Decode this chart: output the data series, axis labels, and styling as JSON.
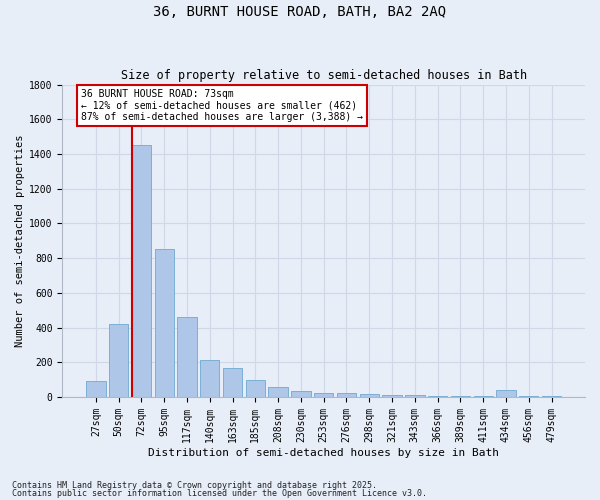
{
  "title1": "36, BURNT HOUSE ROAD, BATH, BA2 2AQ",
  "title2": "Size of property relative to semi-detached houses in Bath",
  "xlabel": "Distribution of semi-detached houses by size in Bath",
  "ylabel": "Number of semi-detached properties",
  "categories": [
    "27sqm",
    "50sqm",
    "72sqm",
    "95sqm",
    "117sqm",
    "140sqm",
    "163sqm",
    "185sqm",
    "208sqm",
    "230sqm",
    "253sqm",
    "276sqm",
    "298sqm",
    "321sqm",
    "343sqm",
    "366sqm",
    "389sqm",
    "411sqm",
    "434sqm",
    "456sqm",
    "479sqm"
  ],
  "values": [
    90,
    420,
    1450,
    850,
    460,
    215,
    165,
    95,
    60,
    35,
    25,
    25,
    15,
    12,
    10,
    8,
    6,
    6,
    40,
    5,
    3
  ],
  "bar_color": "#aec6e8",
  "bar_edge_color": "#7aafd4",
  "grid_color": "#d0d8e8",
  "bg_color": "#e8eef8",
  "vline_color": "#cc0000",
  "vline_x": 2,
  "annotation_text": "36 BURNT HOUSE ROAD: 73sqm\n← 12% of semi-detached houses are smaller (462)\n87% of semi-detached houses are larger (3,388) →",
  "annotation_box_color": "#ffffff",
  "annotation_box_edge": "#cc0000",
  "footer1": "Contains HM Land Registry data © Crown copyright and database right 2025.",
  "footer2": "Contains public sector information licensed under the Open Government Licence v3.0.",
  "ylim": [
    0,
    1800
  ],
  "yticks": [
    0,
    200,
    400,
    600,
    800,
    1000,
    1200,
    1400,
    1600,
    1800
  ],
  "title1_fontsize": 10,
  "title2_fontsize": 8.5,
  "xlabel_fontsize": 8,
  "ylabel_fontsize": 7.5,
  "tick_fontsize": 7,
  "annot_fontsize": 7,
  "footer_fontsize": 6
}
